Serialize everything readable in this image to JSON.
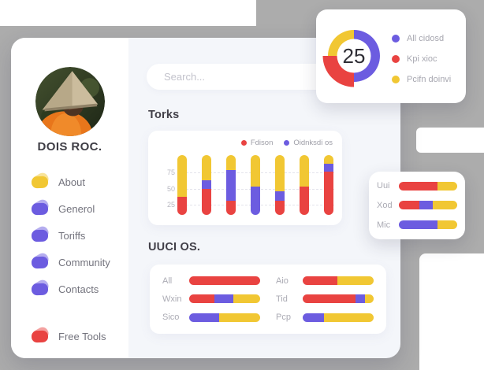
{
  "colors": {
    "red": "#E94341",
    "purple": "#6C5CE0",
    "yellow": "#F1C733",
    "gray_background": "#ACACAC",
    "content_background": "#F4F6FA",
    "card_background": "#FFFFFF"
  },
  "sidebar": {
    "name": "DOIS ROC.",
    "items": [
      {
        "label": "About",
        "color": "yellow"
      },
      {
        "label": "Generol",
        "color": "purple"
      },
      {
        "label": "Toriffs",
        "color": "purple"
      },
      {
        "label": "Community",
        "color": "purple"
      },
      {
        "label": "Contacts",
        "color": "purple"
      }
    ],
    "footer_item": {
      "label": "Free Tools",
      "color": "red"
    }
  },
  "search": {
    "placeholder": "Search..."
  },
  "sections": {
    "torks_title": "Torks",
    "uuci_title": "UUCI OS."
  },
  "chart_data": [
    {
      "id": "torks",
      "type": "bar",
      "stacked": true,
      "title": "Torks",
      "ylim": [
        0,
        100
      ],
      "y_ticks": [
        "75",
        "50",
        "25"
      ],
      "grid": true,
      "legend_position": "top-right",
      "legend": [
        {
          "label": "Fdison",
          "color": "red"
        },
        {
          "label": "Oidnksdi os",
          "color": "purple"
        }
      ],
      "bars": [
        [
          {
            "color": "red",
            "value": 30
          },
          {
            "color": "yellow",
            "value": 70
          }
        ],
        [
          {
            "color": "red",
            "value": 43
          },
          {
            "color": "purple",
            "value": 15
          },
          {
            "color": "yellow",
            "value": 42
          }
        ],
        [
          {
            "color": "red",
            "value": 24
          },
          {
            "color": "purple",
            "value": 51
          },
          {
            "color": "yellow",
            "value": 25
          }
        ],
        [
          {
            "color": "purple",
            "value": 48
          },
          {
            "color": "yellow",
            "value": 52
          }
        ],
        [
          {
            "color": "red",
            "value": 24
          },
          {
            "color": "purple",
            "value": 15
          },
          {
            "color": "yellow",
            "value": 61
          }
        ],
        [
          {
            "color": "red",
            "value": 48
          },
          {
            "color": "yellow",
            "value": 52
          }
        ],
        [
          {
            "color": "red",
            "value": 72
          },
          {
            "color": "purple",
            "value": 14
          },
          {
            "color": "yellow",
            "value": 14
          }
        ]
      ]
    },
    {
      "id": "donut",
      "type": "pie",
      "center_label": "25",
      "slices": [
        {
          "label": "All cidosd",
          "color": "purple",
          "value": 50
        },
        {
          "label": "Kpi xioc",
          "color": "red",
          "value": 25,
          "exploded": true
        },
        {
          "label": "Pcifn doinvi",
          "color": "yellow",
          "value": 25
        }
      ]
    },
    {
      "id": "uuci-left",
      "type": "hbar",
      "rows": [
        {
          "label": "All",
          "segments": [
            {
              "color": "red",
              "value": 100
            }
          ]
        },
        {
          "label": "Wxin",
          "segments": [
            {
              "color": "red",
              "value": 36
            },
            {
              "color": "purple",
              "value": 26
            },
            {
              "color": "yellow",
              "value": 38
            }
          ]
        },
        {
          "label": "Sico",
          "segments": [
            {
              "color": "purple",
              "value": 42
            },
            {
              "color": "yellow",
              "value": 58
            }
          ]
        }
      ]
    },
    {
      "id": "uuci-right",
      "type": "hbar",
      "rows": [
        {
          "label": "Aio",
          "segments": [
            {
              "color": "red",
              "value": 49
            },
            {
              "color": "yellow",
              "value": 51
            }
          ]
        },
        {
          "label": "Tid",
          "segments": [
            {
              "color": "red",
              "value": 74
            },
            {
              "color": "purple",
              "value": 14
            },
            {
              "color": "yellow",
              "value": 12
            }
          ]
        },
        {
          "label": "Pcp",
          "segments": [
            {
              "color": "purple",
              "value": 30
            },
            {
              "color": "yellow",
              "value": 70
            }
          ]
        }
      ]
    },
    {
      "id": "side-panel",
      "type": "hbar",
      "rows": [
        {
          "label": "Uui",
          "segments": [
            {
              "color": "red",
              "value": 66
            },
            {
              "color": "yellow",
              "value": 34
            }
          ]
        },
        {
          "label": "Xod",
          "segments": [
            {
              "color": "red",
              "value": 35
            },
            {
              "color": "purple",
              "value": 23
            },
            {
              "color": "yellow",
              "value": 42
            }
          ]
        },
        {
          "label": "Mic",
          "segments": [
            {
              "color": "purple",
              "value": 66
            },
            {
              "color": "yellow",
              "value": 34
            }
          ]
        }
      ]
    }
  ]
}
